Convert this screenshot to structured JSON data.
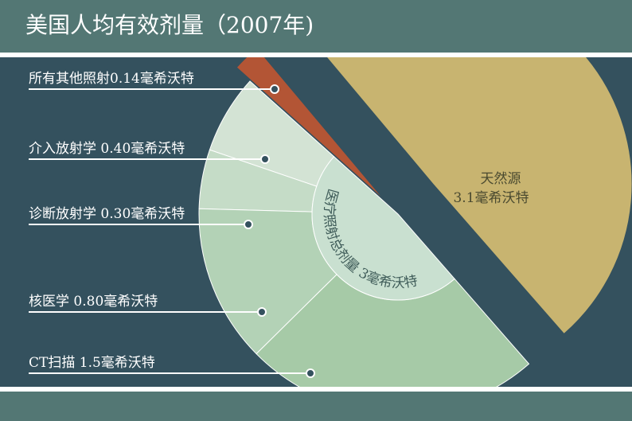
{
  "title": "美国人均有效剂量（2007年)",
  "colors": {
    "title_bar": "#537774",
    "background": "#34515e",
    "natural": "#c8b470",
    "other": "#b35535",
    "interventional": "#d3e3d4",
    "diagnostic": "#c5dcc7",
    "nuclear": "#b3d2b6",
    "ct": "#a6caa7",
    "inner_ring": "#c9e0d0",
    "leader_line": "#ffffff"
  },
  "chart_data": {
    "type": "pie",
    "title": "美国人均有效剂量（2007年)",
    "unit": "毫希沃特",
    "slices": [
      {
        "name": "天然源",
        "value": 3.1,
        "label_line1": "天然源",
        "label_line2": "3.1毫希沃特",
        "color": "#c8b470"
      },
      {
        "name": "所有其他照射",
        "value": 0.14,
        "label": "所有其他照射0.14毫希沃特",
        "color": "#b35535"
      },
      {
        "name": "介入放射学",
        "value": 0.4,
        "label": "介入放射学 0.40毫希沃特",
        "color": "#d3e3d4"
      },
      {
        "name": "诊断放射学",
        "value": 0.3,
        "label": "诊断放射学 0.30毫希沃特",
        "color": "#c5dcc7"
      },
      {
        "name": "核医学",
        "value": 0.8,
        "label": "核医学 0.80毫希沃特",
        "color": "#b3d2b6"
      },
      {
        "name": "CT扫描",
        "value": 1.5,
        "label": "CT扫描 1.5毫希沃特",
        "color": "#a6caa7"
      }
    ],
    "group": {
      "name": "医疗照射总剂量",
      "value": 3,
      "label": "医疗照射总剂量 3毫希沃特"
    }
  }
}
